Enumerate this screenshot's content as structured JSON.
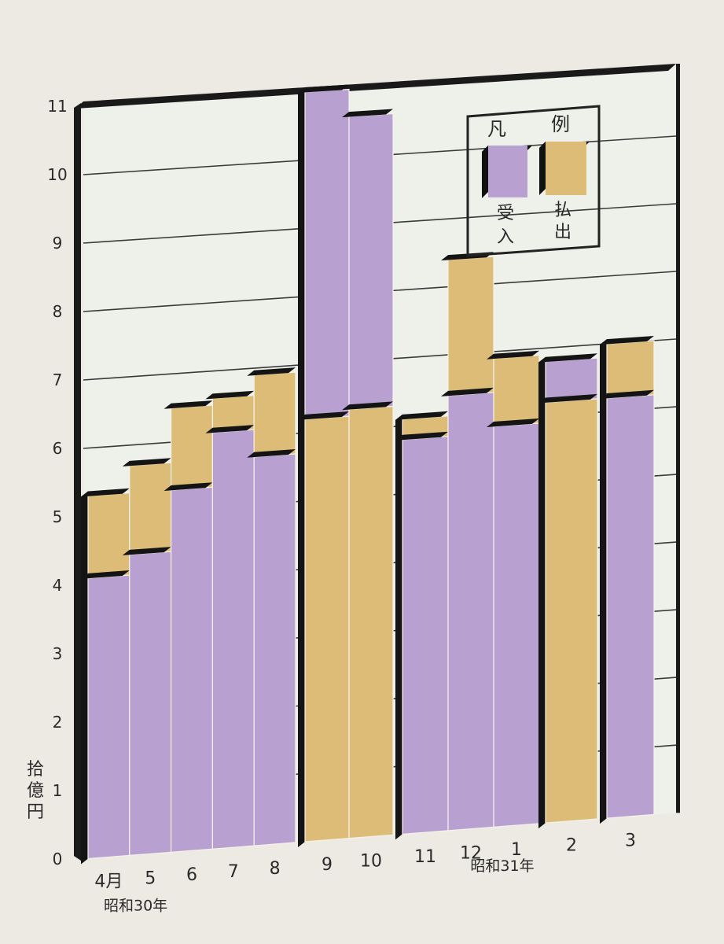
{
  "chart_data": {
    "type": "bar",
    "title": "",
    "unit_label": [
      "拾",
      "億",
      "円"
    ],
    "y_ticks": [
      "0",
      "1",
      "2",
      "3",
      "4",
      "5",
      "6",
      "7",
      "8",
      "9",
      "10",
      "11"
    ],
    "ylim": [
      0,
      11
    ],
    "grid": true,
    "categories": [
      "4月",
      "5",
      "6",
      "7",
      "8",
      "9",
      "10",
      "11",
      "12",
      "1",
      "2",
      "3"
    ],
    "groups": [
      {
        "months": [
          0,
          1,
          2,
          3,
          4
        ],
        "era_label": "昭和30年"
      },
      {
        "months": [
          5,
          6
        ],
        "era_label": ""
      },
      {
        "months": [
          7,
          8,
          9
        ],
        "era_label": "昭和31年"
      },
      {
        "months": [
          10
        ],
        "era_label": ""
      },
      {
        "months": [
          11
        ],
        "era_label": ""
      }
    ],
    "series": [
      {
        "name": "受入",
        "color": "#b8a0d0",
        "values": [
          4.1,
          4.4,
          5.3,
          6.1,
          5.7,
          11.0,
          10.6,
          5.8,
          6.4,
          5.9,
          6.8,
          6.2
        ]
      },
      {
        "name": "払出",
        "color": "#dcbc76",
        "values": [
          5.3,
          5.7,
          6.5,
          6.6,
          6.9,
          6.2,
          6.3,
          6.1,
          8.4,
          6.9,
          6.2,
          7.0
        ]
      }
    ],
    "legend": {
      "title": [
        "凡",
        "例"
      ],
      "placement": "top-right"
    }
  }
}
